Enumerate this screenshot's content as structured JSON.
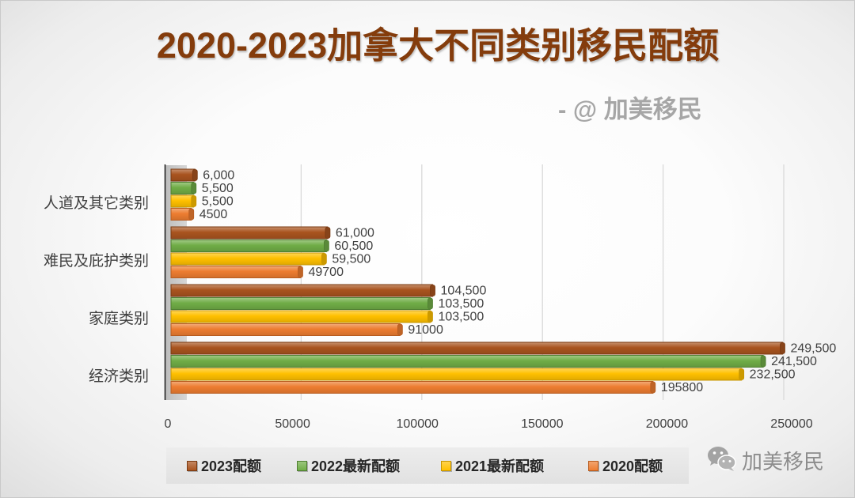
{
  "chart_data": {
    "type": "bar",
    "title": "2020-2023加拿大不同类别移民配额",
    "categories": [
      "人道及其它类别",
      "难民及庇护类别",
      "家庭类别",
      "经济类别"
    ],
    "series": [
      {
        "name": "2023配额",
        "color": "#a9541f",
        "edge": "#7a3a12",
        "values": [
          6000,
          61000,
          104500,
          249500
        ],
        "labels": [
          "6,000",
          "61,000",
          "104,500",
          "249,500"
        ]
      },
      {
        "name": "2022最新配额",
        "color": "#70ad47",
        "edge": "#4f7f31",
        "values": [
          5500,
          60500,
          103500,
          241500
        ],
        "labels": [
          "5,500",
          "60,500",
          "103,500",
          "241,500"
        ]
      },
      {
        "name": "2021最新配额",
        "color": "#ffc000",
        "edge": "#c79500",
        "values": [
          5500,
          59500,
          103500,
          232500
        ],
        "labels": [
          "5,500",
          "59,500",
          "103,500",
          "232,500"
        ]
      },
      {
        "name": "2020配额",
        "color": "#ed7d31",
        "edge": "#b85c1f",
        "values": [
          4500,
          49700,
          91000,
          195800
        ],
        "labels": [
          "4500",
          "49700",
          "91000",
          "195800"
        ]
      }
    ],
    "xticks": [
      0,
      50000,
      100000,
      150000,
      200000,
      250000
    ],
    "xlim": [
      0,
      250000
    ],
    "grid": true,
    "legend_position": "bottom"
  },
  "subtitle": "- @ 加美移民",
  "watermark": {
    "icon": "wechat-icon",
    "text": "加美移民"
  },
  "colors": {
    "title": "#843c0c",
    "subtitle": "#a6a6a6",
    "axis_text": "#404040",
    "gridline": "#d9d9d9"
  }
}
